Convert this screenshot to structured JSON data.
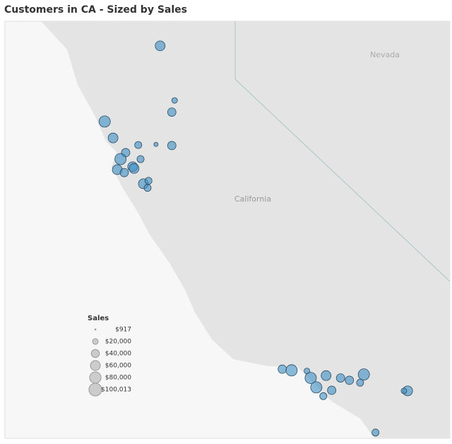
{
  "chart_data": {
    "type": "bubble_map",
    "title": "Customers in CA - Sized by Sales",
    "region_labels": [
      "Nevada",
      "California"
    ],
    "legend_title": "Sales",
    "legend_values": [
      917,
      20000,
      40000,
      60000,
      80000,
      100013
    ],
    "legend_value_labels": [
      "$917",
      "$20,000",
      "$40,000",
      "$60,000",
      "$80,000",
      "$100,013"
    ],
    "color": "#3f8fc4",
    "lon": [
      -121.56,
      -121.25,
      -121.31,
      -122.75,
      -122.57,
      -121.65,
      -122.03,
      -121.31,
      -122.3,
      -122.41,
      -121.98,
      -122.48,
      -122.33,
      -122.15,
      -122.12,
      -121.92,
      -121.83,
      -121.81,
      -118.94,
      -118.74,
      -118.41,
      -118.33,
      -118.21,
      -118.0,
      -117.88,
      -117.69,
      -117.5,
      -117.19,
      -117.27,
      -118.06,
      -116.25,
      -116.33,
      -116.94
    ],
    "lat": [
      39.76,
      38.83,
      38.63,
      38.47,
      38.19,
      38.08,
      38.07,
      38.06,
      37.94,
      37.83,
      37.83,
      37.65,
      37.6,
      37.7,
      37.67,
      37.41,
      37.34,
      37.46,
      34.25,
      34.23,
      34.22,
      34.1,
      33.94,
      34.14,
      33.89,
      34.1,
      34.06,
      34.16,
      34.02,
      33.79,
      33.88,
      33.88,
      33.17
    ],
    "values": [
      60000,
      20000,
      44000,
      79000,
      60000,
      11000,
      31000,
      44000,
      44000,
      79000,
      31000,
      60000,
      44000,
      60000,
      60000,
      60000,
      31000,
      31000,
      44000,
      79000,
      20000,
      79000,
      79000,
      60000,
      44000,
      44000,
      44000,
      79000,
      31000,
      31000,
      60000,
      20000,
      31000
    ]
  }
}
